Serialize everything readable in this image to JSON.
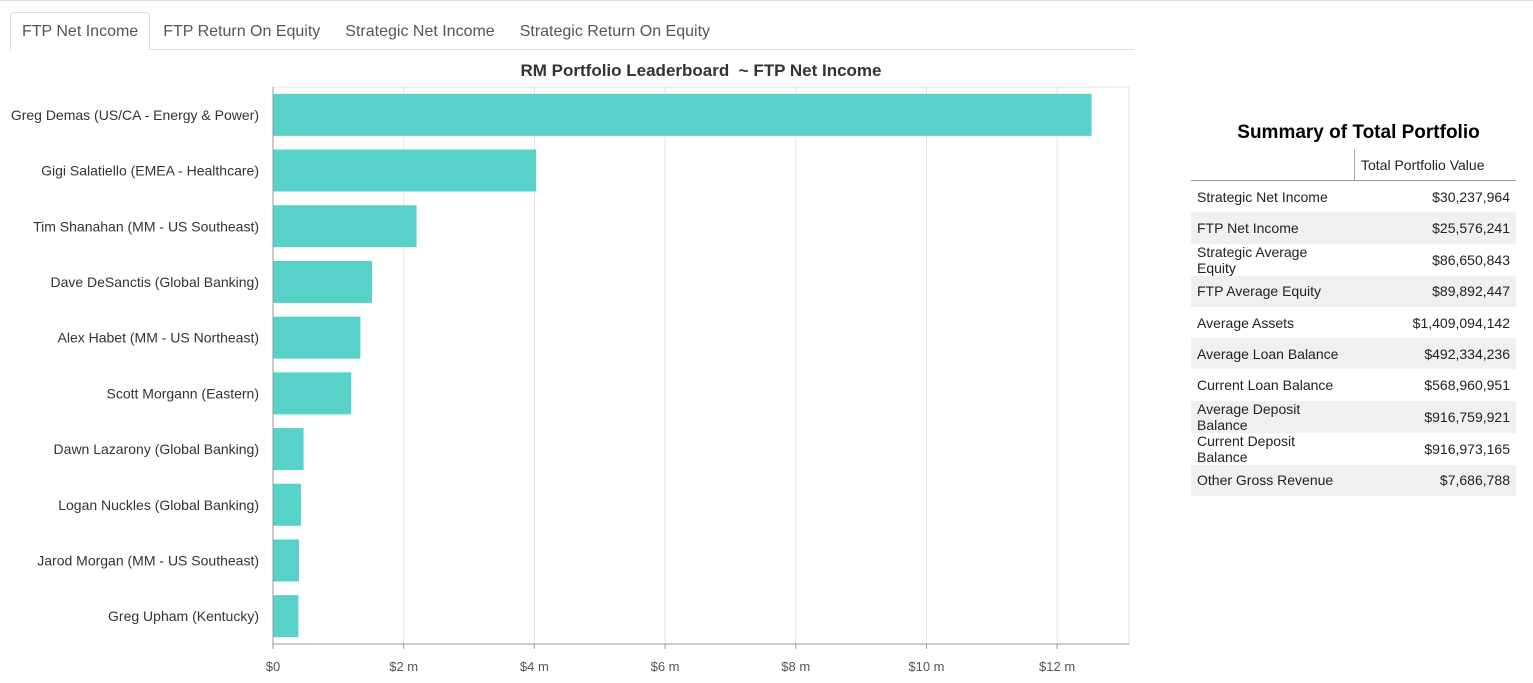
{
  "tabs": [
    {
      "label": "FTP Net Income",
      "active": true
    },
    {
      "label": "FTP Return On Equity",
      "active": false
    },
    {
      "label": "Strategic Net Income",
      "active": false
    },
    {
      "label": "Strategic Return On Equity",
      "active": false
    }
  ],
  "chart_data": {
    "type": "bar",
    "orientation": "horizontal",
    "title": "RM Portfolio Leaderboard  ~ FTP Net Income",
    "categories": [
      "Greg Demas (US/CA - Energy & Power)",
      "Gigi Salatiello (EMEA - Healthcare)",
      "Tim Shanahan (MM - US Southeast)",
      "Dave DeSanctis (Global Banking)",
      "Alex Habet (MM - US Northeast)",
      "Scott Morgann (Eastern)",
      "Dawn Lazarony (Global Banking)",
      "Logan Nuckles (Global Banking)",
      "Jarod Morgan (MM - US Southeast)",
      "Greg Upham (Kentucky)"
    ],
    "values": [
      12.52,
      4.02,
      2.19,
      1.51,
      1.33,
      1.19,
      0.46,
      0.42,
      0.39,
      0.38
    ],
    "value_unit": "millions USD",
    "xlim": [
      0,
      13.1
    ],
    "x_ticks": [
      0,
      2,
      4,
      6,
      8,
      10,
      12
    ],
    "x_tick_labels": [
      "$0",
      "$2 m",
      "$4 m",
      "$6 m",
      "$8 m",
      "$10 m",
      "$12 m"
    ],
    "grid": true,
    "bar_color": "#58d1c9"
  },
  "summary": {
    "title": "Summary of Total Portfolio",
    "column_header": "Total Portfolio Value",
    "rows": [
      {
        "label": "Strategic Net Income",
        "value": "$30,237,964"
      },
      {
        "label": "FTP Net Income",
        "value": "$25,576,241"
      },
      {
        "label": "Strategic Average Equity",
        "value": "$86,650,843"
      },
      {
        "label": "FTP Average Equity",
        "value": "$89,892,447"
      },
      {
        "label": "Average Assets",
        "value": "$1,409,094,142"
      },
      {
        "label": "Average Loan Balance",
        "value": "$492,334,236"
      },
      {
        "label": "Current Loan Balance",
        "value": "$568,960,951"
      },
      {
        "label": "Average Deposit Balance",
        "value": "$916,759,921"
      },
      {
        "label": "Current Deposit Balance",
        "value": "$916,973,165"
      },
      {
        "label": "Other Gross Revenue",
        "value": "$7,686,788"
      }
    ]
  }
}
